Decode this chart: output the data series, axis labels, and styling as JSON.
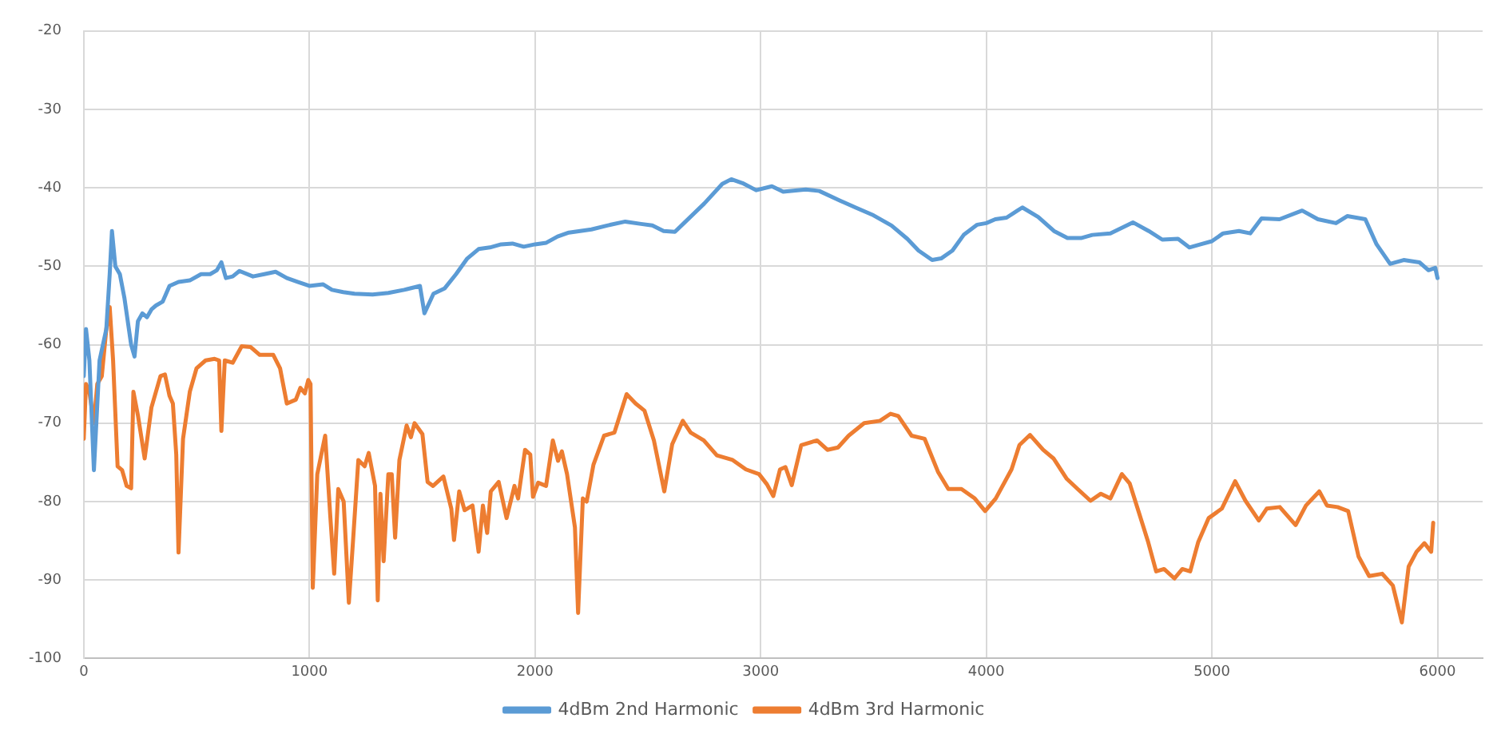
{
  "chart_data": {
    "type": "line",
    "xlim": [
      0,
      6200
    ],
    "xticks": [
      0,
      1000,
      2000,
      3000,
      4000,
      5000,
      6000
    ],
    "ylim": [
      -100,
      -20
    ],
    "yticks": [
      -100,
      -90,
      -80,
      -70,
      -60,
      -50,
      -40,
      -30,
      -20
    ],
    "grid": true,
    "legend": "bottom",
    "marker": "none",
    "line_style": "solid",
    "series": [
      {
        "name": "4dBm 2nd Harmonic",
        "color": "#5b9bd5",
        "x": [
          0,
          10,
          25,
          45,
          70,
          100,
          115,
          125,
          140,
          160,
          180,
          210,
          225,
          240,
          260,
          280,
          300,
          320,
          350,
          380,
          420,
          470,
          520,
          560,
          590,
          610,
          630,
          660,
          690,
          750,
          800,
          850,
          900,
          950,
          1000,
          1060,
          1100,
          1150,
          1200,
          1280,
          1350,
          1420,
          1490,
          1510,
          1550,
          1600,
          1650,
          1700,
          1750,
          1800,
          1850,
          1900,
          1950,
          2000,
          2050,
          2100,
          2150,
          2200,
          2250,
          2320,
          2400,
          2470,
          2520,
          2570,
          2620,
          2660,
          2750,
          2830,
          2870,
          2920,
          2980,
          3050,
          3100,
          3200,
          3260,
          3350,
          3420,
          3500,
          3580,
          3650,
          3700,
          3760,
          3800,
          3850,
          3900,
          3960,
          4000,
          4040,
          4090,
          4160,
          4230,
          4300,
          4360,
          4420,
          4470,
          4550,
          4650,
          4720,
          4780,
          4850,
          4900,
          4950,
          5000,
          5050,
          5120,
          5170,
          5220,
          5300,
          5400,
          5470,
          5550,
          5600,
          5680,
          5730,
          5790,
          5850,
          5920,
          5960,
          5990,
          6000
        ],
        "values": [
          -64,
          -58,
          -62,
          -76,
          -62,
          -58,
          -51,
          -45.5,
          -50,
          -51,
          -54,
          -60,
          -61.5,
          -57,
          -56,
          -56.5,
          -55.5,
          -55,
          -54.5,
          -52.5,
          -52,
          -51.8,
          -51,
          -51,
          -50.5,
          -49.5,
          -51.5,
          -51.3,
          -50.6,
          -51.3,
          -51,
          -50.7,
          -51.5,
          -52,
          -52.5,
          -52.3,
          -53,
          -53.3,
          -53.5,
          -53.6,
          -53.4,
          -53,
          -52.5,
          -56,
          -53.5,
          -52.8,
          -51,
          -49,
          -47.8,
          -47.6,
          -47.2,
          -47.1,
          -47.5,
          -47.2,
          -47,
          -46.2,
          -45.7,
          -45.5,
          -45.3,
          -44.8,
          -44.3,
          -44.6,
          -44.8,
          -45.5,
          -45.6,
          -44.5,
          -42,
          -39.5,
          -38.9,
          -39.4,
          -40.3,
          -39.8,
          -40.5,
          -40.2,
          -40.4,
          -41.6,
          -42.5,
          -43.5,
          -44.8,
          -46.5,
          -48,
          -49.2,
          -49,
          -48,
          -46,
          -44.7,
          -44.5,
          -44,
          -43.8,
          -42.5,
          -43.7,
          -45.5,
          -46.4,
          -46.4,
          -46,
          -45.8,
          -44.4,
          -45.5,
          -46.6,
          -46.5,
          -47.6,
          -47.2,
          -46.8,
          -45.8,
          -45.5,
          -45.8,
          -43.9,
          -44,
          -42.9,
          -44,
          -44.5,
          -43.6,
          -44,
          -47.2,
          -49.7,
          -49.2,
          -49.5,
          -50.5,
          -50.2,
          -51.5
        ]
      },
      {
        "name": "4dBm 3rd Harmonic",
        "color": "#ed7d31",
        "x": [
          0,
          10,
          25,
          45,
          60,
          80,
          100,
          115,
          130,
          150,
          170,
          190,
          210,
          220,
          240,
          270,
          300,
          340,
          360,
          380,
          395,
          410,
          420,
          440,
          470,
          500,
          540,
          580,
          600,
          610,
          625,
          660,
          700,
          740,
          780,
          840,
          870,
          900,
          940,
          960,
          980,
          995,
          1005,
          1015,
          1035,
          1070,
          1093,
          1110,
          1128,
          1152,
          1175,
          1193,
          1217,
          1245,
          1263,
          1291,
          1303,
          1315,
          1329,
          1350,
          1365,
          1380,
          1399,
          1431,
          1450,
          1466,
          1501,
          1524,
          1548,
          1594,
          1629,
          1641,
          1664,
          1688,
          1723,
          1750,
          1769,
          1788,
          1804,
          1839,
          1874,
          1909,
          1925,
          1956,
          1979,
          1991,
          2014,
          2049,
          2079,
          2102,
          2119,
          2142,
          2177,
          2191,
          2212,
          2229,
          2259,
          2306,
          2352,
          2406,
          2446,
          2485,
          2527,
          2573,
          2608,
          2655,
          2690,
          2748,
          2806,
          2876,
          2935,
          2993,
          3028,
          3056,
          3086,
          3110,
          3138,
          3180,
          3250,
          3296,
          3343,
          3390,
          3459,
          3529,
          3576,
          3610,
          3669,
          3727,
          3786,
          3832,
          3890,
          3949,
          3995,
          4042,
          4112,
          4147,
          4194,
          4252,
          4298,
          4357,
          4405,
          4462,
          4508,
          4550,
          4601,
          4636,
          4671,
          4718,
          4753,
          4788,
          4834,
          4869,
          4904,
          4939,
          4986,
          5044,
          5103,
          5149,
          5208,
          5243,
          5301,
          5371,
          5417,
          5476,
          5510,
          5557,
          5604,
          5650,
          5697,
          5755,
          5802,
          5842,
          5872,
          5907,
          5942,
          5972,
          5981
        ],
        "values": [
          -72,
          -65,
          -66,
          -70,
          -65,
          -64,
          -58,
          -55.2,
          -62,
          -75.5,
          -76,
          -78,
          -78.3,
          -66,
          -69,
          -74.5,
          -68,
          -64,
          -63.8,
          -66.5,
          -67.5,
          -74,
          -86.5,
          -72,
          -66,
          -63,
          -62,
          -61.8,
          -62,
          -71,
          -62,
          -62.3,
          -60.2,
          -60.3,
          -61.3,
          -61.3,
          -63,
          -67.5,
          -67,
          -65.5,
          -66.2,
          -64.5,
          -65,
          -91,
          -76.5,
          -71.6,
          -82,
          -89.2,
          -78.4,
          -80,
          -92.9,
          -85.2,
          -74.7,
          -75.5,
          -73.8,
          -78,
          -92.6,
          -79,
          -87.6,
          -76.5,
          -76.5,
          -84.6,
          -74.7,
          -70.3,
          -71.8,
          -70,
          -71.4,
          -77.5,
          -78,
          -76.8,
          -80.9,
          -84.9,
          -78.7,
          -81.1,
          -80.5,
          -86.4,
          -80.5,
          -84,
          -78.7,
          -77.5,
          -82.1,
          -78,
          -79.6,
          -73.4,
          -74,
          -79.4,
          -77.6,
          -78,
          -72.2,
          -74.8,
          -73.6,
          -76.5,
          -83.3,
          -94.2,
          -79.6,
          -80,
          -75.3,
          -71.6,
          -71.2,
          -66.3,
          -67.5,
          -68.4,
          -72.2,
          -78.7,
          -72.7,
          -69.7,
          -71.2,
          -72.2,
          -74.1,
          -74.7,
          -75.9,
          -76.5,
          -77.8,
          -79.3,
          -75.9,
          -75.6,
          -77.9,
          -72.8,
          -72.2,
          -73.4,
          -73.1,
          -71.6,
          -70,
          -69.7,
          -68.8,
          -69.1,
          -71.6,
          -72,
          -76.2,
          -78.4,
          -78.4,
          -79.6,
          -81.2,
          -79.6,
          -75.9,
          -72.8,
          -71.5,
          -73.4,
          -74.5,
          -77.1,
          -78.4,
          -79.9,
          -79,
          -79.6,
          -76.5,
          -77.7,
          -80.9,
          -85.2,
          -88.9,
          -88.6,
          -89.8,
          -88.6,
          -88.9,
          -85.2,
          -82.1,
          -80.9,
          -77.4,
          -79.9,
          -82.4,
          -80.9,
          -80.7,
          -83,
          -80.5,
          -78.7,
          -80.5,
          -80.7,
          -81.2,
          -87,
          -89.5,
          -89.2,
          -90.7,
          -95.4,
          -88.3,
          -86.4,
          -85.3,
          -86.4,
          -82.7
        ]
      }
    ]
  }
}
